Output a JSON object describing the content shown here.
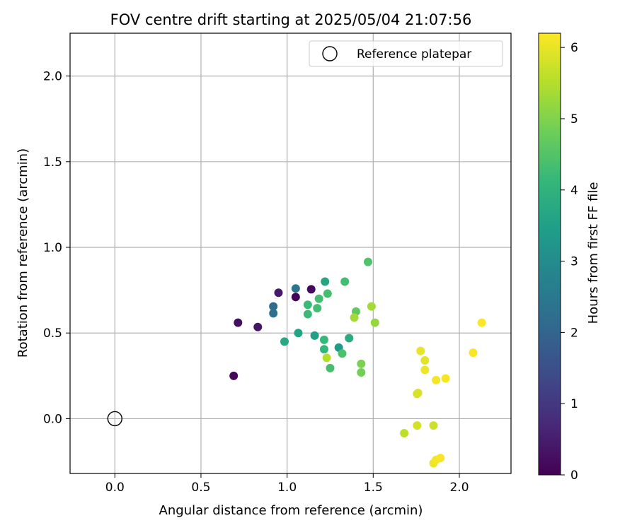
{
  "chart_data": {
    "type": "scatter",
    "title": "FOV centre drift starting at 2025/05/04 21:07:56",
    "xlabel": "Angular distance from reference (arcmin)",
    "ylabel": "Rotation from reference (arcmin)",
    "xlim": [
      -0.26,
      2.3
    ],
    "ylim": [
      -0.32,
      2.25
    ],
    "xticks": [
      0.0,
      0.5,
      1.0,
      1.5,
      2.0
    ],
    "xtick_labels": [
      "0.0",
      "0.5",
      "1.0",
      "1.5",
      "2.0"
    ],
    "yticks": [
      0.0,
      0.5,
      1.0,
      1.5,
      2.0
    ],
    "ytick_labels": [
      "0.0",
      "0.5",
      "1.0",
      "1.5",
      "2.0"
    ],
    "grid": true,
    "legend": {
      "position": "top-right",
      "label": "Reference platepar"
    },
    "reference_point": {
      "x": 0.0,
      "y": 0.0
    },
    "colorbar": {
      "label": "Hours from first FF file",
      "colormap": "viridis",
      "range": [
        0,
        6.2
      ],
      "ticks": [
        0,
        1,
        2,
        3,
        4,
        5,
        6
      ],
      "tick_labels": [
        "0",
        "1",
        "2",
        "3",
        "4",
        "5",
        "6"
      ]
    },
    "points": [
      {
        "x": 0.69,
        "y": 0.25,
        "h": 0.1
      },
      {
        "x": 0.715,
        "y": 0.56,
        "h": 0.25
      },
      {
        "x": 0.83,
        "y": 0.535,
        "h": 0.35
      },
      {
        "x": 0.95,
        "y": 0.735,
        "h": 0.45
      },
      {
        "x": 1.05,
        "y": 0.71,
        "h": 0.05
      },
      {
        "x": 1.14,
        "y": 0.755,
        "h": 0.15
      },
      {
        "x": 0.92,
        "y": 0.655,
        "h": 2.2
      },
      {
        "x": 0.92,
        "y": 0.615,
        "h": 2.3
      },
      {
        "x": 1.05,
        "y": 0.76,
        "h": 2.4
      },
      {
        "x": 0.985,
        "y": 0.45,
        "h": 3.7
      },
      {
        "x": 1.065,
        "y": 0.5,
        "h": 3.6
      },
      {
        "x": 1.16,
        "y": 0.485,
        "h": 3.5
      },
      {
        "x": 1.22,
        "y": 0.8,
        "h": 3.65
      },
      {
        "x": 1.3,
        "y": 0.415,
        "h": 3.4
      },
      {
        "x": 1.36,
        "y": 0.47,
        "h": 3.8
      },
      {
        "x": 1.12,
        "y": 0.665,
        "h": 4.2
      },
      {
        "x": 1.12,
        "y": 0.61,
        "h": 4.2
      },
      {
        "x": 1.175,
        "y": 0.645,
        "h": 4.3
      },
      {
        "x": 1.185,
        "y": 0.7,
        "h": 4.3
      },
      {
        "x": 1.235,
        "y": 0.73,
        "h": 4.35
      },
      {
        "x": 1.335,
        "y": 0.8,
        "h": 4.3
      },
      {
        "x": 1.215,
        "y": 0.46,
        "h": 4.15
      },
      {
        "x": 1.215,
        "y": 0.405,
        "h": 4.1
      },
      {
        "x": 1.25,
        "y": 0.295,
        "h": 4.35
      },
      {
        "x": 1.32,
        "y": 0.38,
        "h": 4.4
      },
      {
        "x": 1.47,
        "y": 0.915,
        "h": 4.45
      },
      {
        "x": 1.4,
        "y": 0.625,
        "h": 4.65
      },
      {
        "x": 1.43,
        "y": 0.32,
        "h": 4.95
      },
      {
        "x": 1.43,
        "y": 0.27,
        "h": 4.85
      },
      {
        "x": 1.39,
        "y": 0.59,
        "h": 5.35
      },
      {
        "x": 1.49,
        "y": 0.655,
        "h": 5.35
      },
      {
        "x": 1.51,
        "y": 0.56,
        "h": 5.2
      },
      {
        "x": 1.23,
        "y": 0.355,
        "h": 5.5
      },
      {
        "x": 1.68,
        "y": -0.085,
        "h": 5.6
      },
      {
        "x": 1.755,
        "y": -0.04,
        "h": 5.8
      },
      {
        "x": 1.85,
        "y": -0.04,
        "h": 5.75
      },
      {
        "x": 1.755,
        "y": 0.145,
        "h": 5.75
      },
      {
        "x": 1.76,
        "y": 0.15,
        "h": 5.85
      },
      {
        "x": 1.775,
        "y": 0.395,
        "h": 6.0
      },
      {
        "x": 1.8,
        "y": 0.34,
        "h": 5.95
      },
      {
        "x": 1.8,
        "y": 0.285,
        "h": 6.05
      },
      {
        "x": 1.865,
        "y": 0.225,
        "h": 6.1
      },
      {
        "x": 1.92,
        "y": 0.235,
        "h": 6.15
      },
      {
        "x": 1.85,
        "y": -0.26,
        "h": 6.05
      },
      {
        "x": 1.865,
        "y": -0.24,
        "h": 6.1
      },
      {
        "x": 1.89,
        "y": -0.23,
        "h": 6.15
      },
      {
        "x": 2.08,
        "y": 0.385,
        "h": 6.15
      },
      {
        "x": 2.13,
        "y": 0.56,
        "h": 6.2
      }
    ]
  }
}
